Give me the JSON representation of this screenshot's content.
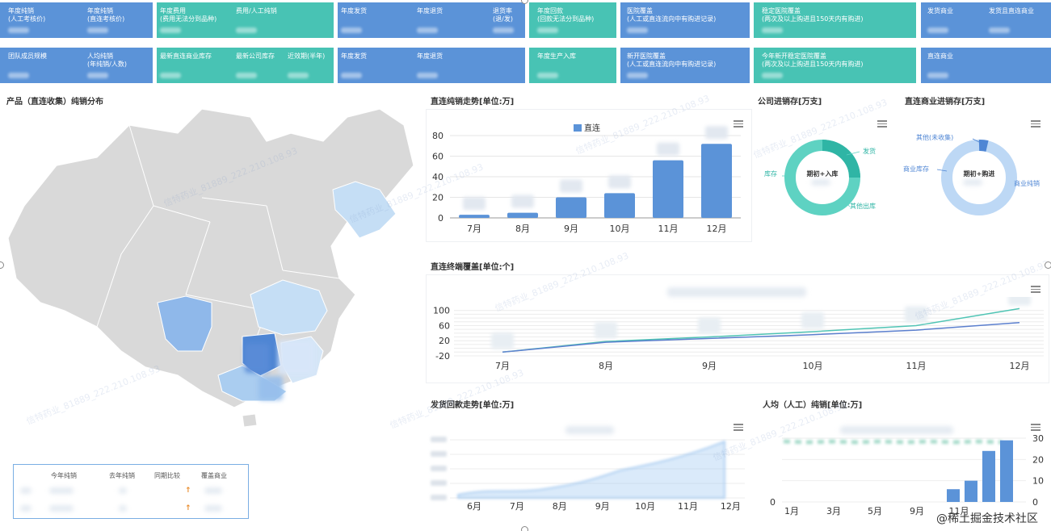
{
  "kpis": {
    "row1": [
      {
        "color": "blue",
        "x": 0,
        "w": 189,
        "cells": [
          {
            "text": "年度纯销\n(人工考核价)",
            "dx": 10
          },
          {
            "text": "年度纯销\n(直连考核价)",
            "dx": 108
          }
        ]
      },
      {
        "color": "teal",
        "x": 194,
        "w": 219,
        "cells": [
          {
            "text": "年度费用\n(费用无法分到品种)",
            "dx": 4
          },
          {
            "text": "费用/人工纯销",
            "dx": 98
          }
        ]
      },
      {
        "color": "blue",
        "x": 418,
        "w": 232,
        "cells": [
          {
            "text": "年度发货",
            "dx": 4
          },
          {
            "text": "年度退货",
            "dx": 98
          },
          {
            "text": "退货率\n(退/发)",
            "dx": 192
          }
        ]
      },
      {
        "color": "teal",
        "x": 655,
        "w": 108,
        "cells": [
          {
            "text": "年度回款\n(回款无法分到品种)",
            "dx": 10
          }
        ]
      },
      {
        "color": "blue",
        "x": 768,
        "w": 160,
        "cells": [
          {
            "text": "医院覆盖\n(人工或直连流向中有购进记录)",
            "dx": 8
          }
        ]
      },
      {
        "color": "teal",
        "x": 933,
        "w": 201,
        "cells": [
          {
            "text": "稳定医院覆盖\n(两次及以上购进且150天内有购进)",
            "dx": 10
          }
        ]
      },
      {
        "color": "blue",
        "x": 1140,
        "w": 161,
        "cells": [
          {
            "text": "发货商业",
            "dx": 8
          },
          {
            "text": "发货且直连商业",
            "dx": 84
          }
        ]
      }
    ],
    "row2": [
      {
        "color": "blue",
        "x": 0,
        "w": 189,
        "cells": [
          {
            "text": "团队成员规模",
            "dx": 10
          },
          {
            "text": "人均纯销\n(年纯销/人数)",
            "dx": 108
          }
        ]
      },
      {
        "color": "teal",
        "x": 194,
        "w": 219,
        "cells": [
          {
            "text": "最新直连商业库存",
            "dx": 4
          },
          {
            "text": "最新公司库存",
            "dx": 98
          },
          {
            "text": "近效期(半年)",
            "dx": 162
          }
        ]
      },
      {
        "color": "blue",
        "x": 418,
        "w": 232,
        "cells": [
          {
            "text": "年度发货",
            "dx": 4
          },
          {
            "text": "年度退货",
            "dx": 98
          }
        ]
      },
      {
        "color": "teal",
        "x": 655,
        "w": 108,
        "cells": [
          {
            "text": "年度生产入库",
            "dx": 10
          }
        ]
      },
      {
        "color": "blue",
        "x": 768,
        "w": 160,
        "cells": [
          {
            "text": "新开医院覆盖\n(人工或直连流向中有购进记录)",
            "dx": 8
          }
        ]
      },
      {
        "color": "teal",
        "x": 933,
        "w": 201,
        "cells": [
          {
            "text": "今年新开稳定医院覆盖\n(两次及以上购进且150天内有购进)",
            "dx": 10
          }
        ]
      },
      {
        "color": "blue",
        "x": 1140,
        "w": 161,
        "cells": [
          {
            "text": "直连商业",
            "dx": 8
          }
        ]
      }
    ]
  },
  "map_panel": {
    "title": "产品（直连收集）纯销分布"
  },
  "stat_table": {
    "headers": [
      "今年纯销",
      "去年纯销",
      "同期比较",
      "覆盖商业"
    ],
    "arrows": [
      "↑",
      "↑"
    ]
  },
  "direct_sales": {
    "title": "直连纯销走势[单位:万]",
    "legend": "直连",
    "chart_data": {
      "type": "bar",
      "categories": [
        "7月",
        "8月",
        "9月",
        "10月",
        "11月",
        "12月"
      ],
      "values": [
        3,
        5,
        20,
        24,
        56,
        72
      ],
      "ylim": [
        0,
        80
      ],
      "yticks": [
        0,
        20,
        40,
        60,
        80
      ],
      "color": "#5b93d8"
    }
  },
  "company_inventory": {
    "title": "公司进销存[万支]",
    "center_label": "期初+入库",
    "labels": [
      "发货",
      "其他出库",
      "库存"
    ]
  },
  "direct_biz_inventory": {
    "title": "直连商业进销存[万支]",
    "center_label": "期初+购进",
    "labels": [
      "其他(未收集)",
      "商业库存",
      "商业纯销"
    ]
  },
  "terminal_coverage": {
    "title": "直连终端覆盖[单位:个]",
    "chart_data": {
      "type": "line",
      "categories": [
        "7月",
        "8月",
        "9月",
        "10月",
        "11月",
        "12月"
      ],
      "series": [
        {
          "values": [
            -10,
            18,
            30,
            44,
            60,
            105
          ],
          "color": "#4fc4b4"
        },
        {
          "values": [
            -10,
            16,
            26,
            36,
            48,
            68
          ],
          "color": "#5b7fce"
        }
      ],
      "ylim": [
        -20,
        110
      ],
      "yticks": [
        -20,
        20,
        60,
        100
      ]
    }
  },
  "shipment_payment": {
    "title": "发货回款走势[单位:万]",
    "chart_data": {
      "type": "area",
      "categories": [
        "6月",
        "7月",
        "8月",
        "9月",
        "10月",
        "11月",
        "12月"
      ]
    }
  },
  "per_capita": {
    "title": "人均（人工）纯销[单位:万]",
    "chart_data": {
      "type": "bar",
      "categories": [
        "1月",
        "3月",
        "5月",
        "9月",
        "11月"
      ],
      "yticks": [
        0,
        10,
        20,
        30
      ]
    }
  },
  "footer": {
    "text": "@稀土掘金技术社区"
  }
}
